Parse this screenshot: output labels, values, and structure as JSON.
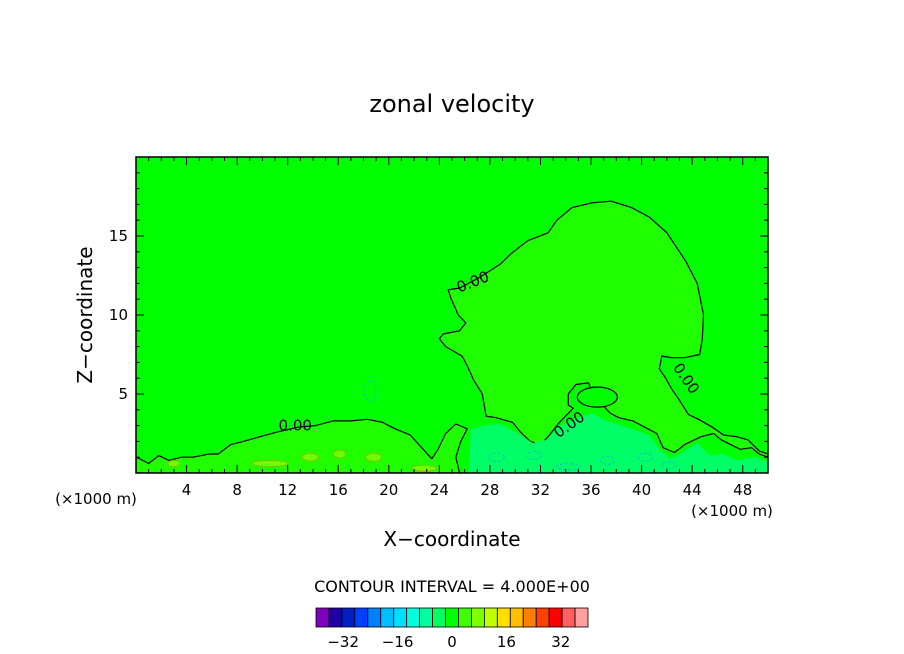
{
  "chart_data": {
    "type": "heatmap",
    "title": "zonal velocity",
    "xlabel": "X−coordinate",
    "ylabel": "Z−coordinate",
    "x_unit_left": "(×1000 m)",
    "x_unit_right": "(×1000 m)",
    "xlim": [
      0,
      50
    ],
    "ylim": [
      0,
      20
    ],
    "x_ticks": [
      4,
      8,
      12,
      16,
      20,
      24,
      28,
      32,
      36,
      40,
      44,
      48
    ],
    "y_ticks": [
      5,
      10,
      15
    ],
    "contour_interval_text": "CONTOUR INTERVAL =  4.000E+00",
    "contour_labels": [
      {
        "text": "0.00",
        "x": 12.6,
        "z": 2.7
      },
      {
        "text": "0.00",
        "x": 26.8,
        "z": 11.8
      },
      {
        "text": "0.00",
        "x": 34.5,
        "z": 2.8
      },
      {
        "text": "0.00",
        "x": 43.2,
        "z": 5.8
      }
    ],
    "background_level_color": "#00ff00",
    "region_level_color": "#1fff00",
    "near_ground_level_color": "#00ff66",
    "colorbar": {
      "levels": [
        -40,
        -36,
        -32,
        -28,
        -24,
        -20,
        -16,
        -12,
        -8,
        -4,
        0,
        4,
        8,
        12,
        16,
        20,
        24,
        28,
        32,
        36,
        40
      ],
      "tick_labels": [
        "−32",
        "−16",
        "0",
        "16",
        "32"
      ],
      "tick_values": [
        -32,
        -16,
        0,
        16,
        32
      ],
      "colors": [
        "#7f00bf",
        "#1f00a5",
        "#001fc0",
        "#0040ff",
        "#0080ff",
        "#00bfff",
        "#00dfff",
        "#00ffdf",
        "#00ffa0",
        "#00ff60",
        "#00ff00",
        "#40ff00",
        "#80ff00",
        "#bfff00",
        "#ffdf00",
        "#ffbf00",
        "#ff8000",
        "#ff4000",
        "#ff0000",
        "#ff6060",
        "#ff9f9f"
      ]
    }
  }
}
